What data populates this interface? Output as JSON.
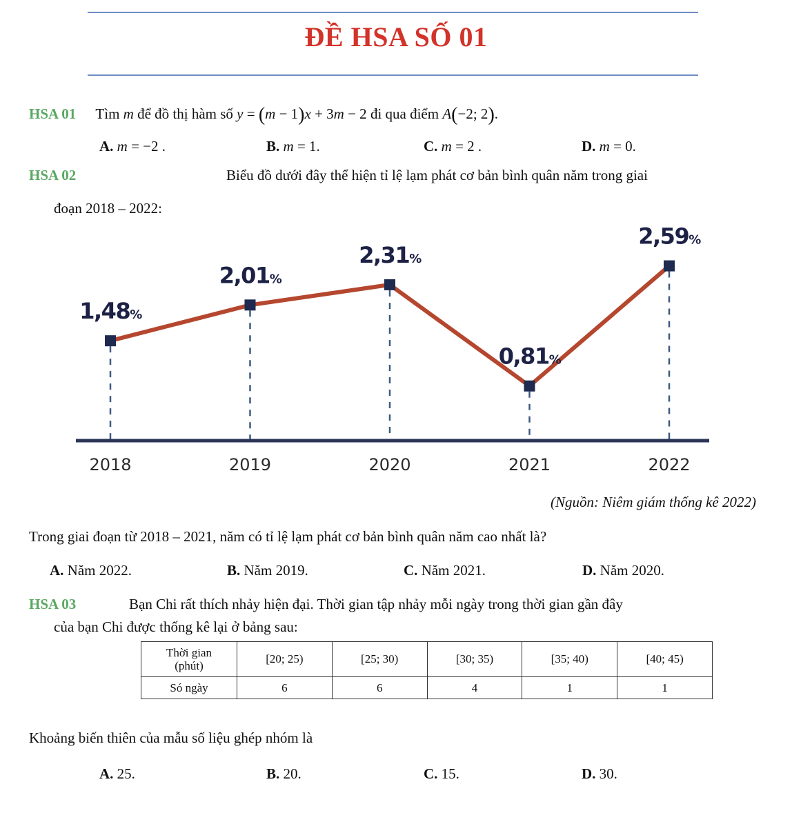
{
  "page_title": "ĐỀ HSA SỐ 01",
  "colors": {
    "title": "#d2332a",
    "question_label": "#5aa861",
    "rule": "#6f8cc4",
    "chart_line": "#b5472f",
    "chart_marker": "#1e2a4f",
    "chart_axis": "#2a3558"
  },
  "q1": {
    "label": "HSA 01",
    "text_a": "Tìm",
    "var_m": "m",
    "text_b": "để đồ thị hàm số",
    "eq_y": "y",
    "eq_eq": " = ",
    "eq_open": "(",
    "eq_m": "m",
    "eq_minus1": " − 1",
    "eq_close": ")",
    "eq_x": "x",
    "eq_plus": " + 3",
    "eq_m2": "m",
    "eq_minus2": " − 2",
    "text_c": "đi qua điểm",
    "pt_A": "A",
    "pt_open": "(",
    "pt_coords": "−2; 2",
    "pt_close": ")",
    "pt_end": ".",
    "options": [
      {
        "letter": "A.",
        "var": "m",
        "value": " = −2 ."
      },
      {
        "letter": "B.",
        "var": "m",
        "value": " = 1."
      },
      {
        "letter": "C.",
        "var": "m",
        "value": " = 2 ."
      },
      {
        "letter": "D.",
        "var": "m",
        "value": " = 0."
      }
    ]
  },
  "q2": {
    "label": "HSA 02",
    "intro_line1": "Biểu đồ dưới đây thể hiện tỉ lệ lạm phát cơ bản bình quân năm trong giai",
    "intro_line2": "đoạn 2018 – 2022:",
    "source": "(Nguồn: Niêm giám thống kê 2022)",
    "question": "Trong giai đoạn từ 2018 – 2021, năm có tỉ lệ lạm phát cơ bản bình quân năm cao nhất là?",
    "options": [
      {
        "letter": "A.",
        "text": " Năm 2022."
      },
      {
        "letter": "B.",
        "text": " Năm 2019."
      },
      {
        "letter": "C.",
        "text": " Năm 2021."
      },
      {
        "letter": "D.",
        "text": " Năm 2020."
      }
    ]
  },
  "chart_data": {
    "type": "line",
    "title": "",
    "xlabel": "",
    "ylabel": "",
    "categories": [
      "2018",
      "2019",
      "2020",
      "2021",
      "2022"
    ],
    "values": [
      1.48,
      2.01,
      2.31,
      0.81,
      2.59
    ],
    "data_labels": [
      "1,48",
      "2,01",
      "2,31",
      "0,81",
      "2,59"
    ],
    "label_unit": "%",
    "ylim": [
      0,
      2.8
    ],
    "grid": false,
    "legend": "none"
  },
  "q3": {
    "label": "HSA 03",
    "intro_line1": "Bạn Chi rất thích nhảy hiện đại. Thời gian tập nhảy mỗi ngày trong thời gian gần đây",
    "intro_line2": "của bạn Chi được thống kê lại ở bảng sau:",
    "table": {
      "header_line1": "Thời gian",
      "header_line2": "(phút)",
      "row2_header": "Só ngày",
      "intervals": [
        "[20; 25)",
        "[25; 30)",
        "[30; 35)",
        "[35; 40)",
        "[40; 45)"
      ],
      "counts": [
        "6",
        "6",
        "4",
        "1",
        "1"
      ]
    },
    "question": "Khoảng biến thiên của mẫu số liệu ghép nhóm là",
    "options": [
      {
        "letter": "A.",
        "text": " 25."
      },
      {
        "letter": "B.",
        "text": " 20."
      },
      {
        "letter": "C.",
        "text": " 15."
      },
      {
        "letter": "D.",
        "text": " 30."
      }
    ]
  }
}
